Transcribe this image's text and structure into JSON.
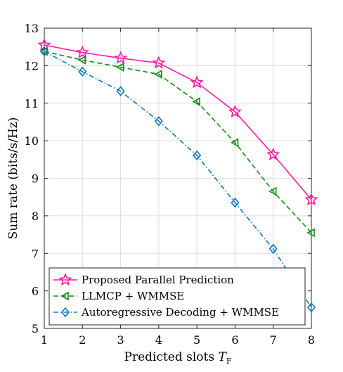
{
  "chart_data": {
    "type": "line",
    "x": [
      1,
      2,
      3,
      4,
      5,
      6,
      7,
      8
    ],
    "xlabel": {
      "text": "Predicted slots ",
      "symbol": "T",
      "subscript": "F"
    },
    "ylabel": "Sum rate (bits/s/Hz)",
    "xlim": [
      1,
      8
    ],
    "ylim": [
      5,
      13
    ],
    "xticks": [
      "1",
      "2",
      "3",
      "4",
      "5",
      "6",
      "7",
      "8"
    ],
    "yticks": [
      "5",
      "6",
      "7",
      "8",
      "9",
      "10",
      "11",
      "12",
      "13"
    ],
    "grid": true,
    "legend_position": "bottom-left",
    "series": [
      {
        "name": "Proposed Parallel Prediction",
        "values": [
          12.55,
          12.35,
          12.2,
          12.07,
          11.55,
          10.77,
          9.63,
          8.43
        ],
        "color": "#ff1aa6",
        "marker": "pentagram",
        "line_style": "solid"
      },
      {
        "name": "LLMCP + WMMSE",
        "values": [
          12.38,
          12.15,
          11.96,
          11.77,
          11.04,
          9.95,
          8.65,
          7.55
        ],
        "color": "#128c12",
        "marker": "triangle-left",
        "line_style": "dashed"
      },
      {
        "name": "Autoregressive Decoding + WMMSE",
        "values": [
          12.38,
          11.84,
          11.32,
          10.52,
          9.61,
          8.35,
          7.12,
          5.56
        ],
        "color": "#0b78bd",
        "marker": "diamond",
        "line_style": "dashdot"
      }
    ]
  }
}
